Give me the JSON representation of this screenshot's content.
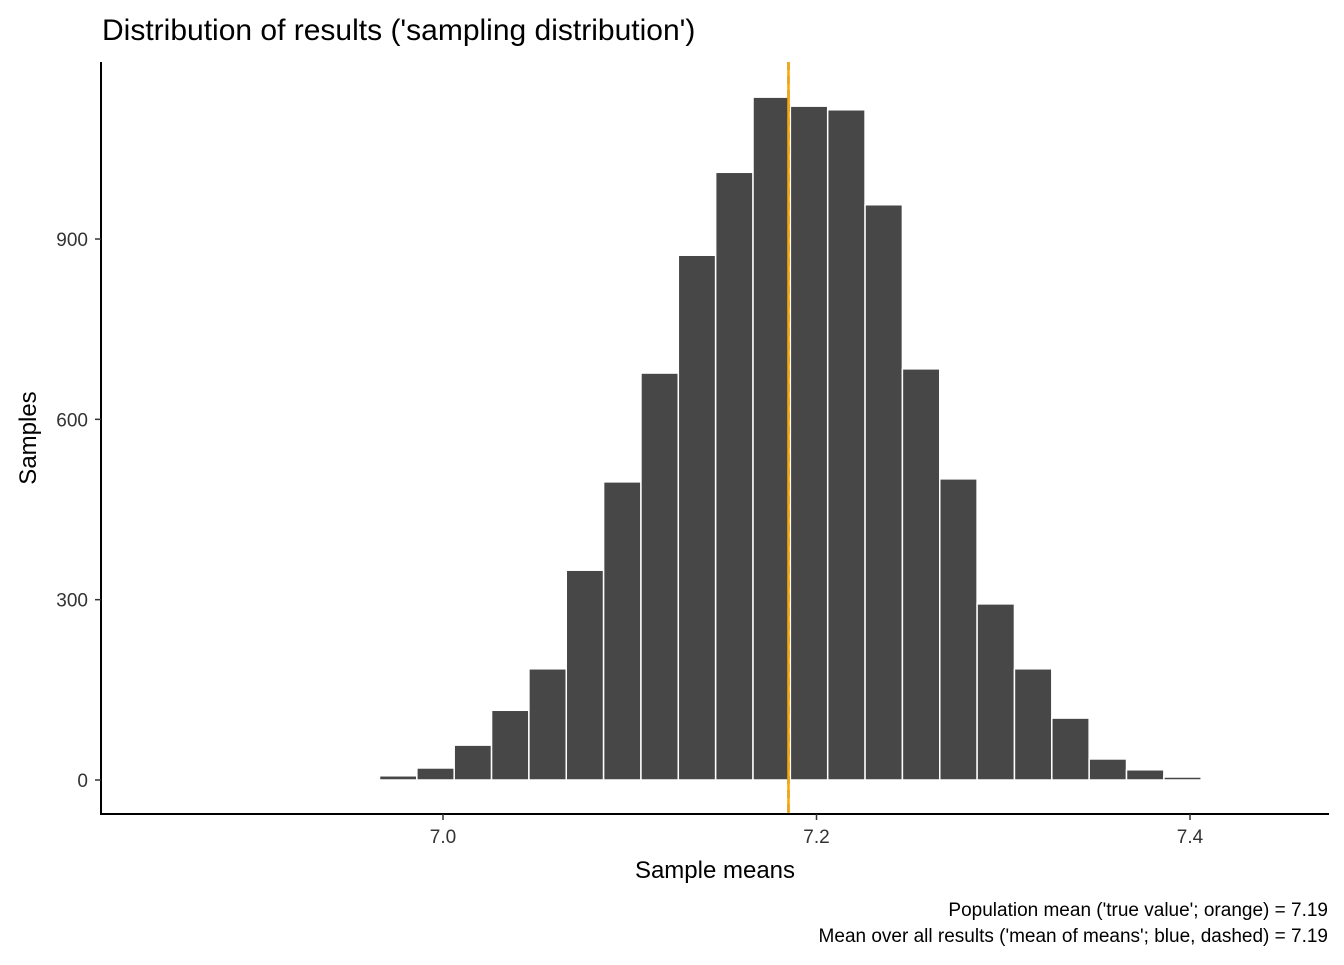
{
  "chart_data": {
    "type": "bar",
    "title": "Distribution of results ('sampling distribution')",
    "xlabel": "Sample means",
    "ylabel": "Samples",
    "xlim": [
      6.83,
      7.47
    ],
    "ylim": [
      -50,
      1200
    ],
    "xticks": [
      7.0,
      7.2,
      7.4
    ],
    "xtick_labels": [
      "7.0",
      "7.2",
      "7.4"
    ],
    "yticks": [
      0,
      300,
      600,
      900
    ],
    "ytick_labels": [
      "0",
      "300",
      "600",
      "900"
    ],
    "grid": false,
    "bin_width": 0.02,
    "bin_centers": [
      6.976,
      6.996,
      7.016,
      7.036,
      7.056,
      7.076,
      7.096,
      7.116,
      7.136,
      7.156,
      7.176,
      7.196,
      7.216,
      7.236,
      7.256,
      7.276,
      7.296,
      7.316,
      7.336,
      7.356,
      7.376,
      7.396
    ],
    "values": [
      7,
      20,
      58,
      116,
      185,
      349,
      496,
      677,
      873,
      1011,
      1136,
      1121,
      1115,
      957,
      684,
      501,
      293,
      185,
      103,
      35,
      17,
      5
    ],
    "bar_color": "#474747",
    "vlines": [
      {
        "name": "mean of means",
        "x": 7.185,
        "color": "#1f77d4",
        "style": "dashed"
      },
      {
        "name": "population mean",
        "x": 7.185,
        "color": "#FFA500",
        "style": "solid"
      }
    ],
    "caption": [
      "Population mean ('true value'; orange) = 7.19",
      "Mean over all results ('mean of means'; blue, dashed) = 7.19"
    ]
  }
}
